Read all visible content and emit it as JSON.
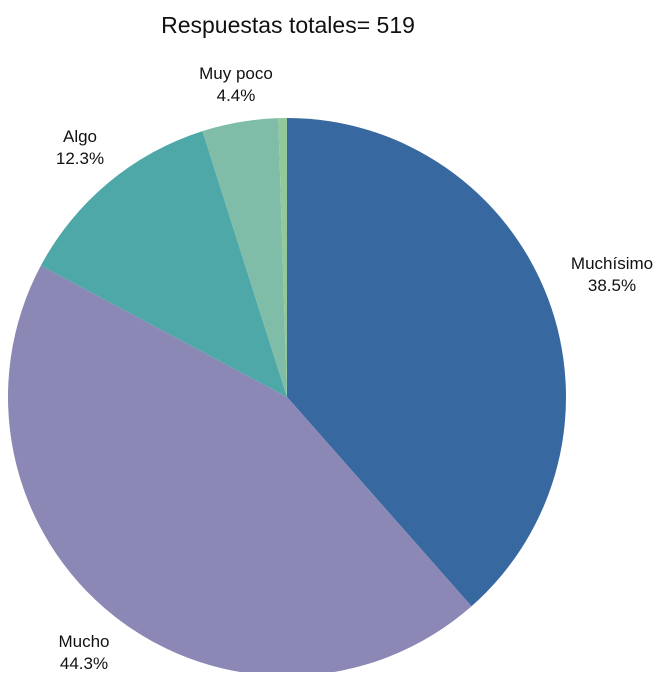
{
  "chart_data": {
    "type": "pie",
    "title": "Respuestas totales= 519",
    "slices": [
      {
        "label": "Muchísimo",
        "value": 38.5,
        "value_label": "38.5%",
        "color": "#3768a0"
      },
      {
        "label": "Mucho",
        "value": 44.3,
        "value_label": "44.3%",
        "color": "#8b88b5"
      },
      {
        "label": "Algo",
        "value": 12.3,
        "value_label": "12.3%",
        "color": "#4fa8a8"
      },
      {
        "label": "Muy poco",
        "value": 4.4,
        "value_label": "4.4%",
        "color": "#7fbda8"
      },
      {
        "label": "",
        "value": 0.5,
        "value_label": "",
        "color": "#93c99a"
      }
    ]
  }
}
